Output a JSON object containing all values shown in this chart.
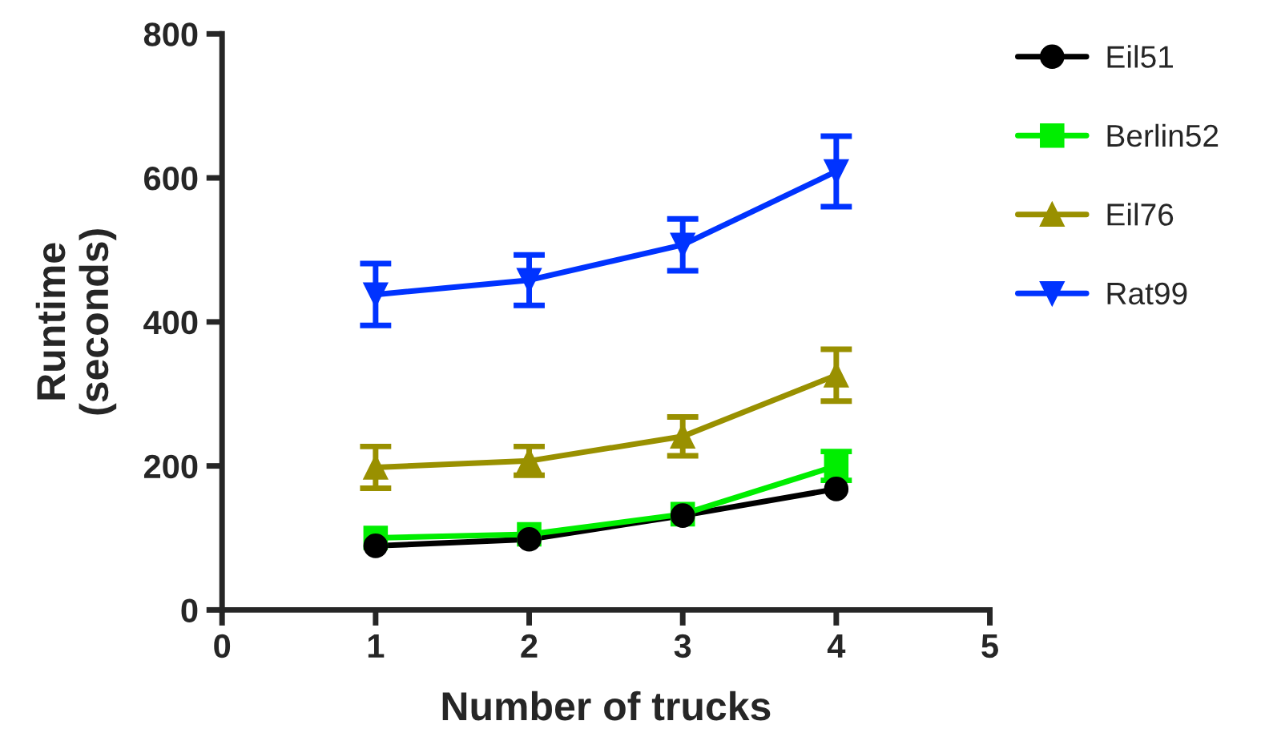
{
  "chart_data": {
    "type": "line",
    "xlabel": "Number of trucks",
    "ylabel": "Runtime\n(seconds)",
    "x": [
      1,
      2,
      3,
      4
    ],
    "xlim": [
      0,
      5
    ],
    "xticks": [
      0,
      1,
      2,
      3,
      4,
      5
    ],
    "ylim": [
      0,
      800
    ],
    "yticks": [
      0,
      200,
      400,
      600,
      800
    ],
    "grid": false,
    "legend": "right",
    "line_style": "solid",
    "series": [
      {
        "name": "Eil51",
        "color": "#000000",
        "marker": "circle",
        "values": [
          89,
          98,
          131,
          168
        ]
      },
      {
        "name": "Berlin52",
        "color": "#00ee00",
        "marker": "square",
        "values": [
          100,
          105,
          133,
          200
        ],
        "errors": [
          null,
          null,
          null,
          20
        ]
      },
      {
        "name": "Eil76",
        "color": "#999000",
        "marker": "triangle",
        "values": [
          198,
          207,
          241,
          326
        ],
        "errors": [
          29,
          20,
          27,
          36
        ]
      },
      {
        "name": "Rat99",
        "color": "#0033ff",
        "marker": "triangle_down",
        "values": [
          438,
          458,
          507,
          609
        ],
        "errors": [
          43,
          35,
          36,
          49
        ]
      }
    ]
  }
}
